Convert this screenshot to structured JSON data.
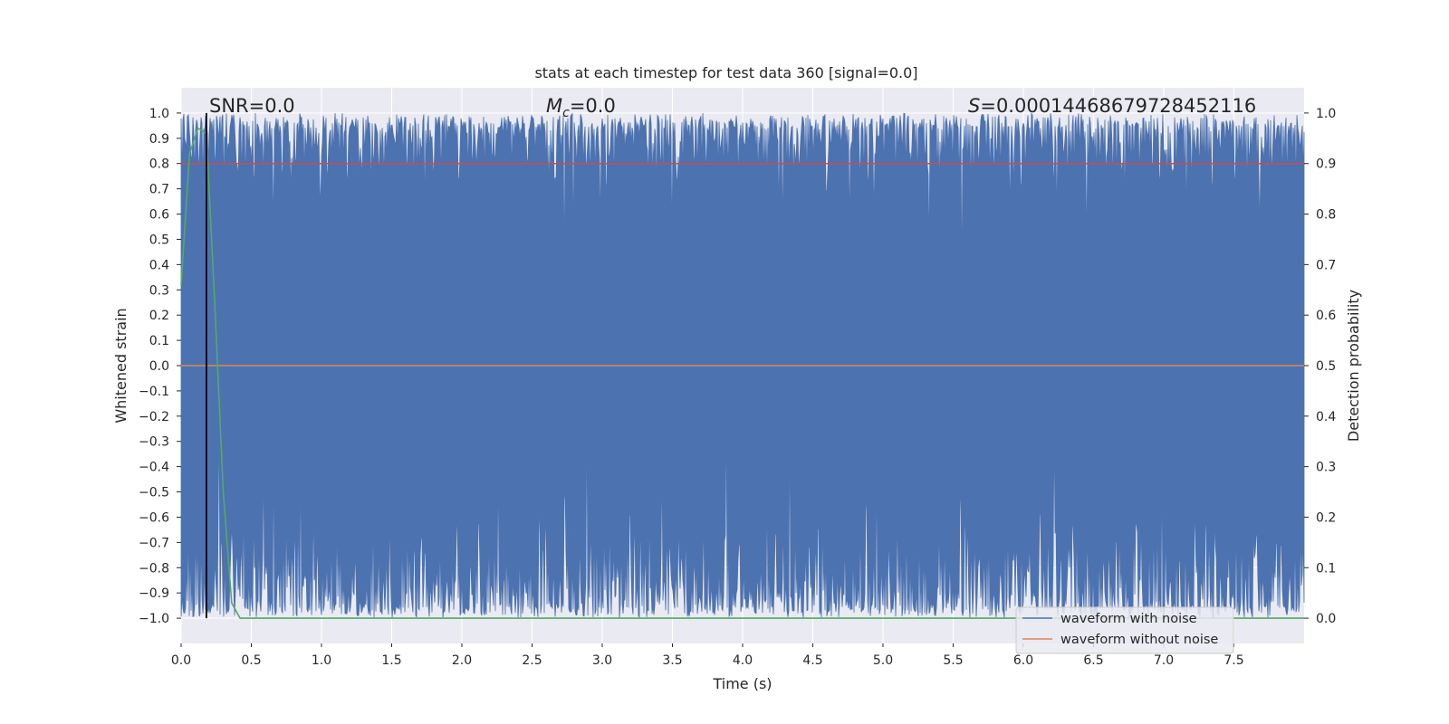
{
  "chart_data": {
    "type": "line",
    "title": "stats at each timestep for test data 360 [signal=0.0]",
    "xlabel": "Time (s)",
    "ylabel": "Whitened strain",
    "y2label": "Detection probability",
    "xlim": [
      0.0,
      8.0
    ],
    "ylim": [
      -1.1,
      1.1
    ],
    "y2lim": [
      -0.05,
      1.05
    ],
    "xticks": [
      "0.0",
      "0.5",
      "1.0",
      "1.5",
      "2.0",
      "2.5",
      "3.0",
      "3.5",
      "4.0",
      "4.5",
      "5.0",
      "5.5",
      "6.0",
      "6.5",
      "7.0",
      "7.5"
    ],
    "yticks": [
      "1.0",
      "0.9",
      "0.8",
      "0.7",
      "0.6",
      "0.5",
      "0.4",
      "0.3",
      "0.2",
      "0.1",
      "0.0",
      "−0.1",
      "−0.2",
      "−0.3",
      "−0.4",
      "−0.5",
      "−0.6",
      "−0.7",
      "−0.8",
      "−0.9",
      "−1.0"
    ],
    "y2ticks": [
      "1.0",
      "0.9",
      "0.8",
      "0.7",
      "0.6",
      "0.5",
      "0.4",
      "0.3",
      "0.2",
      "0.1",
      "0.0"
    ],
    "grid": true,
    "legend_position": "lower right",
    "annotations": {
      "snr": "SNR=0.0",
      "mc_symbol": "M",
      "mc_sub": "c",
      "mc_value": "=0.0",
      "s_symbol": "S",
      "s_value": "=0.00014468679728452116"
    },
    "series": [
      {
        "name": "waveform with noise",
        "color": "#4c72b0",
        "note_range": [
          -1.0,
          1.0
        ]
      },
      {
        "name": "waveform without noise",
        "color": "#dd8452",
        "values_constant": 0.0
      }
    ],
    "threshold_line": {
      "axis": "y2",
      "value": 0.9,
      "color": "#c44e52"
    },
    "marker_line": {
      "x": 0.18,
      "color": "#000000"
    },
    "detection_probability": {
      "color": "#55a868",
      "x": [
        0.0,
        0.06,
        0.12,
        0.18,
        0.24,
        0.3,
        0.36,
        0.42,
        8.0
      ],
      "y": [
        0.66,
        0.92,
        0.97,
        0.96,
        0.62,
        0.25,
        0.03,
        0.0,
        0.0
      ]
    }
  }
}
